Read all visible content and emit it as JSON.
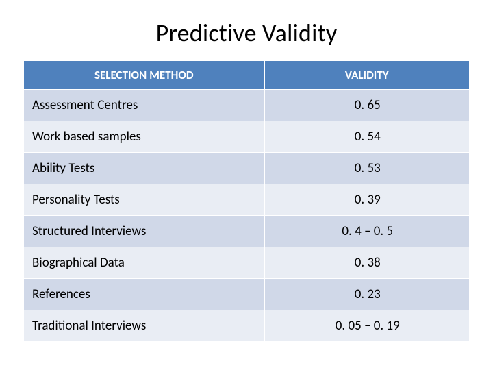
{
  "title": "Predictive Validity",
  "table": {
    "type": "table",
    "header_bg": "#4f81bd",
    "header_fg": "#ffffff",
    "row_band_colors": [
      "#d0d8e8",
      "#e9edf4"
    ],
    "border_color": "#ffffff",
    "title_fontsize": 36,
    "header_fontsize": 17,
    "cell_fontsize": 19,
    "columns": [
      {
        "key": "method",
        "label": "SELECTION METHOD",
        "align": "left",
        "width_pct": 54
      },
      {
        "key": "validity",
        "label": "VALIDITY",
        "align": "center",
        "width_pct": 46
      }
    ],
    "rows": [
      {
        "method": "Assessment Centres",
        "validity": "0. 65"
      },
      {
        "method": "Work based samples",
        "validity": "0. 54"
      },
      {
        "method": "Ability Tests",
        "validity": "0. 53"
      },
      {
        "method": "Personality Tests",
        "validity": "0. 39"
      },
      {
        "method": "Structured Interviews",
        "validity": "0. 4 – 0. 5"
      },
      {
        "method": "Biographical Data",
        "validity": "0. 38"
      },
      {
        "method": "References",
        "validity": "0. 23"
      },
      {
        "method": "Traditional Interviews",
        "validity": "0. 05 – 0. 19"
      }
    ]
  }
}
